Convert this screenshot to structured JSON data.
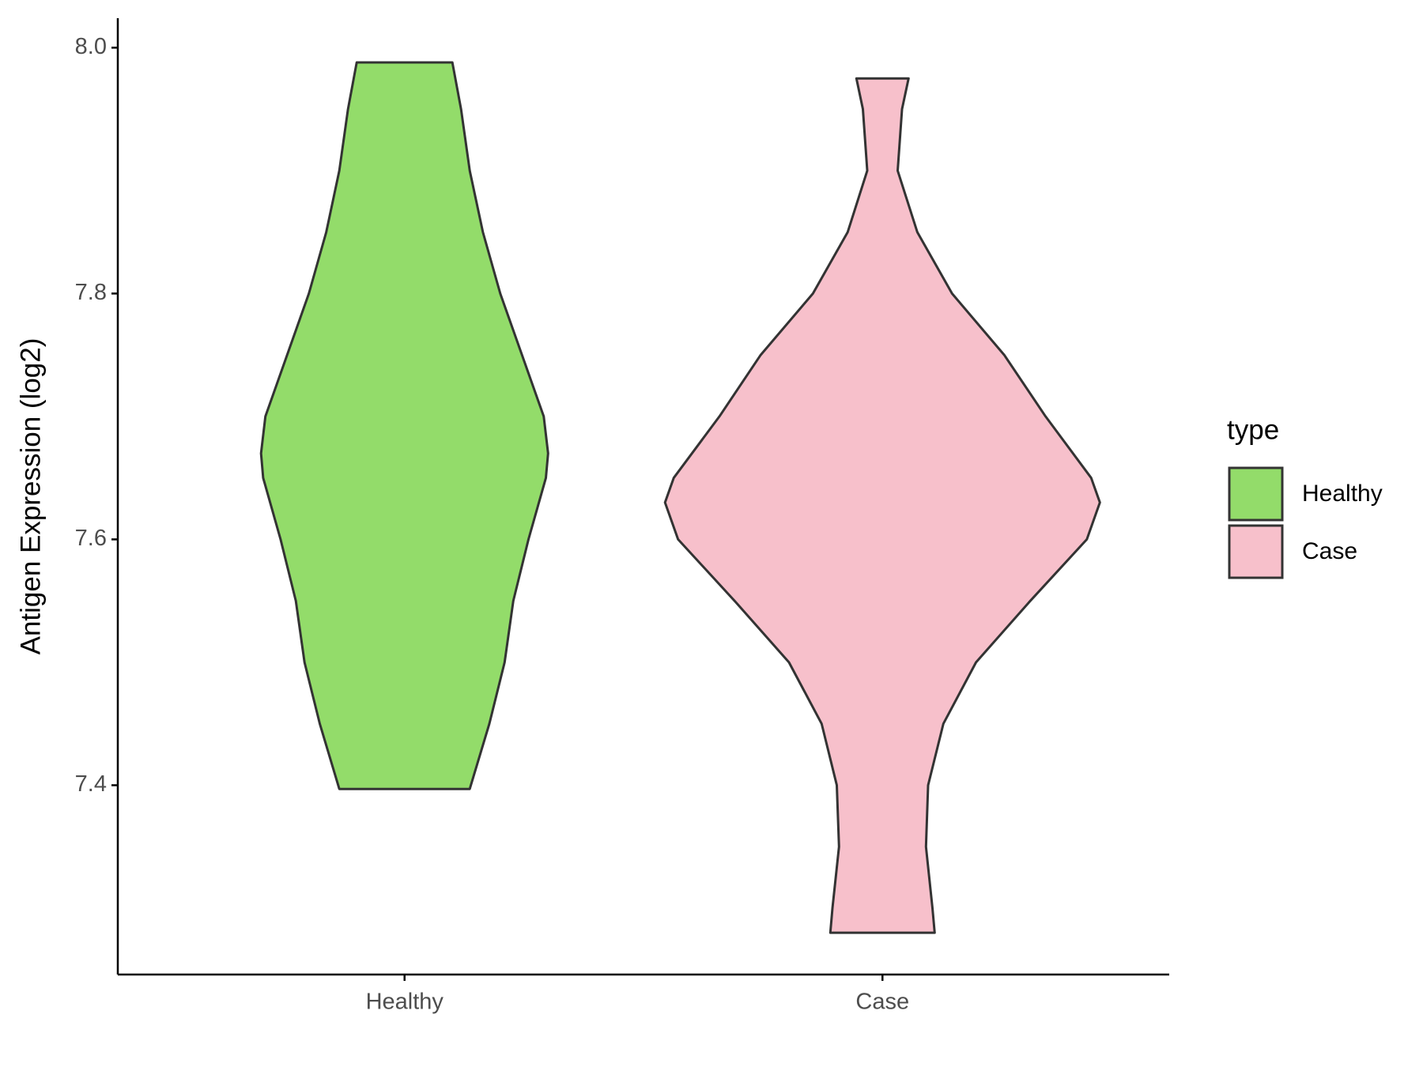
{
  "chart_data": {
    "type": "violin",
    "y_label": "Antigen Expression (log2)",
    "legend_title": "type",
    "categories": [
      "Healthy",
      "Case"
    ],
    "ylim": [
      7.246,
      8.024
    ],
    "yticks": [
      {
        "value": 7.4,
        "label": "7.4"
      },
      {
        "value": 7.6,
        "label": "7.6"
      },
      {
        "value": 7.8,
        "label": "7.8"
      },
      {
        "value": 8.0,
        "label": "8.0"
      }
    ],
    "series": [
      {
        "name": "Healthy",
        "color": "#93dc6a",
        "y": [
          7.988,
          7.95,
          7.9,
          7.85,
          7.8,
          7.75,
          7.7,
          7.67,
          7.65,
          7.6,
          7.55,
          7.5,
          7.45,
          7.397
        ],
        "density": [
          0.22,
          0.26,
          0.3,
          0.36,
          0.44,
          0.54,
          0.64,
          0.66,
          0.65,
          0.57,
          0.5,
          0.46,
          0.39,
          0.3
        ]
      },
      {
        "name": "Case",
        "color": "#f7c0cb",
        "y": [
          7.975,
          7.95,
          7.9,
          7.85,
          7.8,
          7.75,
          7.7,
          7.65,
          7.63,
          7.6,
          7.55,
          7.5,
          7.45,
          7.4,
          7.35,
          7.3,
          7.28
        ],
        "density": [
          0.12,
          0.09,
          0.07,
          0.16,
          0.32,
          0.56,
          0.75,
          0.96,
          1.0,
          0.94,
          0.68,
          0.43,
          0.28,
          0.21,
          0.2,
          0.23,
          0.24
        ]
      }
    ]
  }
}
